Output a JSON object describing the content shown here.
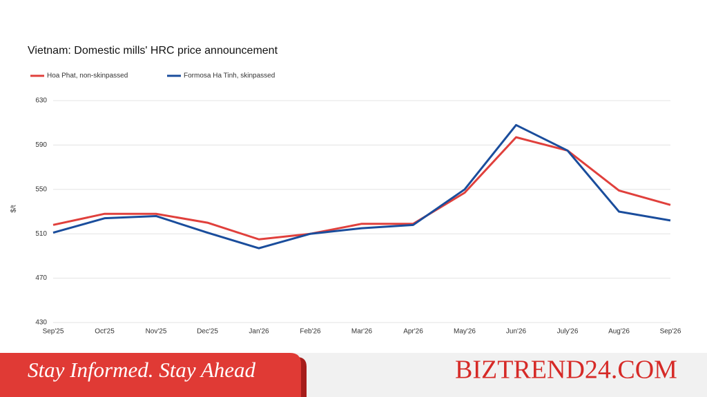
{
  "chart_data": {
    "type": "line",
    "title": "Vietnam: Domestic mills' HRC price announcement",
    "y_label": "$/t",
    "categories": [
      "Sep'25",
      "Oct'25",
      "Nov'25",
      "Dec'25",
      "Jan'26",
      "Feb'26",
      "Mar'26",
      "Apr'26",
      "May'26",
      "Jun'26",
      "July'26",
      "Aug'26",
      "Sep'26"
    ],
    "series": [
      {
        "name": "Hoa Phat, non-skinpassed",
        "color": "#e0403c",
        "values": [
          518,
          528,
          528,
          520,
          505,
          510,
          519,
          519,
          547,
          597,
          585,
          549,
          536
        ]
      },
      {
        "name": "Formosa Ha Tinh, skinpassed",
        "color": "#1a4d9c",
        "values": [
          511,
          524,
          526,
          511,
          497,
          510,
          515,
          518,
          550,
          608,
          585,
          530,
          522
        ]
      }
    ],
    "ylim": [
      430,
      630
    ],
    "yticks": [
      430,
      470,
      510,
      550,
      590,
      630
    ],
    "grid": true
  },
  "banner": {
    "tagline": "Stay Informed. Stay Ahead",
    "brand": "BIZTREND24.COM"
  }
}
